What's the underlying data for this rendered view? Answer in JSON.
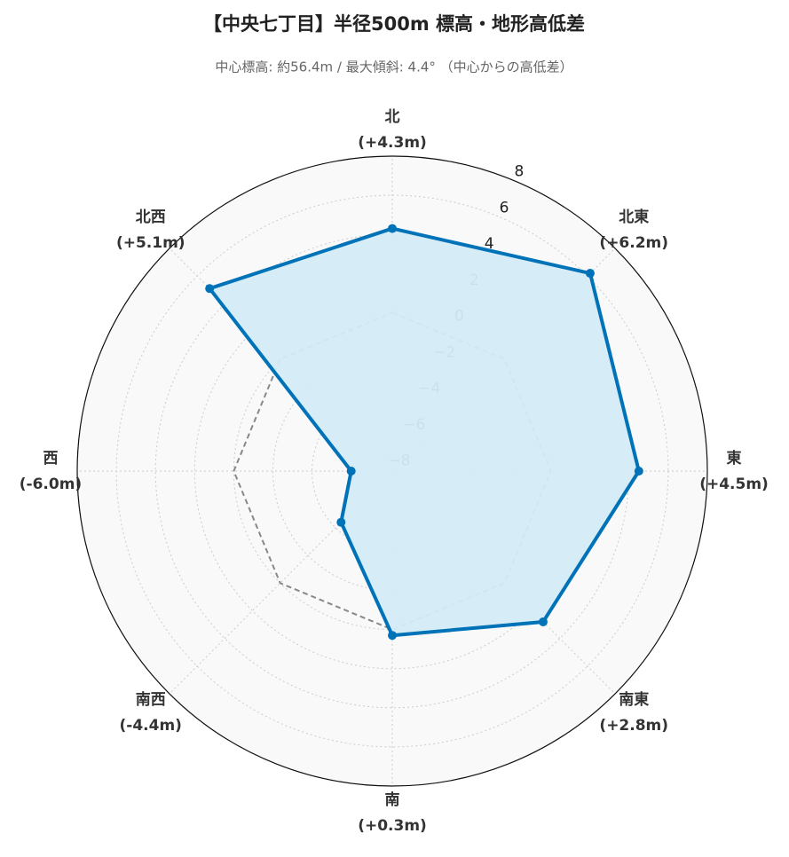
{
  "chart_data": {
    "type": "radar",
    "title": "【中央七丁目】半径500m 標高・地形高低差",
    "subtitle": "中心標高: 約56.4m / 最大傾斜: 4.4° （中心からの高低差）",
    "categories": [
      "北",
      "北東",
      "東",
      "南東",
      "南",
      "南西",
      "西",
      "北西"
    ],
    "values": [
      4.3,
      6.2,
      4.5,
      2.8,
      0.3,
      -4.4,
      -6.0,
      5.1
    ],
    "value_labels": [
      "(+4.3m)",
      "(+6.2m)",
      "(+4.5m)",
      "(+2.8m)",
      "(+0.3m)",
      "(-4.4m)",
      "(-6.0m)",
      "(+5.1m)"
    ],
    "color": "#0072b8",
    "fill_color": "#d4ecf8",
    "baseline": 0,
    "ylim": [
      -8.1,
      8
    ],
    "yticks": [
      {
        "value": -8,
        "label": "−8"
      },
      {
        "value": -6,
        "label": "−6"
      },
      {
        "value": -4,
        "label": "−4"
      },
      {
        "value": -2,
        "label": "−2"
      },
      0,
      2,
      4,
      6,
      8
    ],
    "grid": true
  }
}
